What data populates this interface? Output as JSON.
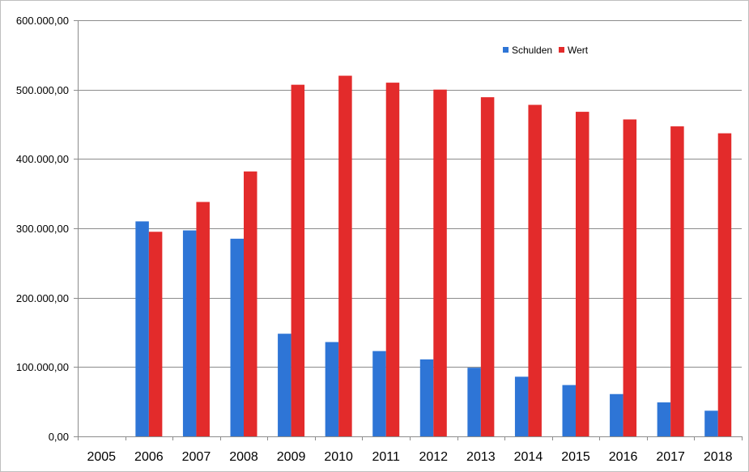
{
  "chart_data": {
    "type": "bar",
    "categories": [
      "2005",
      "2006",
      "2007",
      "2008",
      "2009",
      "2010",
      "2011",
      "2012",
      "2013",
      "2014",
      "2015",
      "2016",
      "2017",
      "2018"
    ],
    "series": [
      {
        "name": "Schulden",
        "color": "#2e75d6",
        "values": [
          null,
          310000,
          297000,
          285000,
          148000,
          136000,
          123000,
          111000,
          99000,
          86000,
          74000,
          61000,
          49000,
          37000
        ]
      },
      {
        "name": "Wert",
        "color": "#e32b2b",
        "values": [
          null,
          295000,
          338000,
          382000,
          507000,
          520000,
          510000,
          500000,
          489000,
          478000,
          468000,
          457000,
          447000,
          437000
        ]
      }
    ],
    "yticks": [
      {
        "value": 0,
        "label": "0,00"
      },
      {
        "value": 100000,
        "label": "100.000,00"
      },
      {
        "value": 200000,
        "label": "200.000,00"
      },
      {
        "value": 300000,
        "label": "300.000,00"
      },
      {
        "value": 400000,
        "label": "400.000,00"
      },
      {
        "value": 500000,
        "label": "500.000,00"
      },
      {
        "value": 600000,
        "label": "600.000,00"
      }
    ],
    "ylim": [
      0,
      600000
    ],
    "title": "",
    "xlabel": "",
    "ylabel": "",
    "grid": true,
    "legend_position": "top-right"
  }
}
